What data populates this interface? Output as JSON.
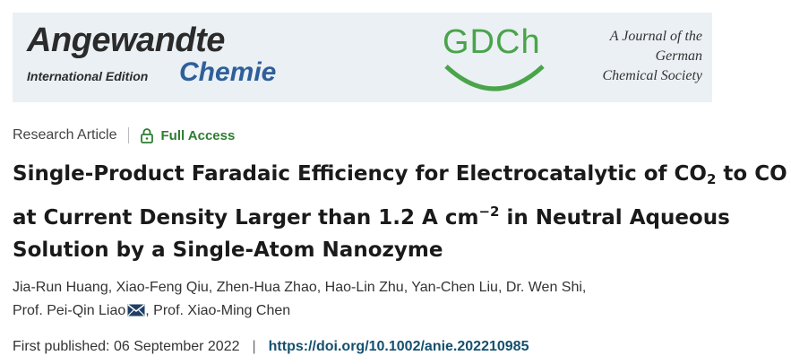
{
  "banner": {
    "journal_title": "Angewandte",
    "journal_edition": "International Edition",
    "journal_subtitle": "Chemie",
    "society_logo_text": "GDCh",
    "society_tagline": [
      "A Journal of the",
      "German",
      "Chemical Society"
    ],
    "colors": {
      "banner_bg": "#eaf0f4",
      "chemie_blue": "#2e5f9a",
      "gdch_green": "#4aa44a"
    }
  },
  "article": {
    "type": "Research Article",
    "access": "Full Access",
    "access_icon": "lock-icon",
    "title_parts": {
      "p1": "Single-Product Faradaic Efficiency for Electrocatalytic of CO",
      "sub": "2",
      "p2": " to CO at Current Density Larger than 1.2 A cm",
      "sup": "−2",
      "p3": " in Neutral Aqueous Solution by a Single-Atom Nanozyme"
    },
    "authors": [
      "Jia-Run Huang",
      "Xiao-Feng Qiu",
      "Zhen-Hua Zhao",
      "Hao-Lin Zhu",
      "Yan-Chen Liu",
      "Dr. Wen Shi",
      "Prof. Pei-Qin Liao",
      "Prof. Xiao-Ming Chen"
    ],
    "corresponding_icon": "mail-icon",
    "first_published_label": "First published:",
    "first_published_date": "06 September 2022",
    "separator": "|",
    "doi": "https://doi.org/10.1002/anie.202210985"
  }
}
